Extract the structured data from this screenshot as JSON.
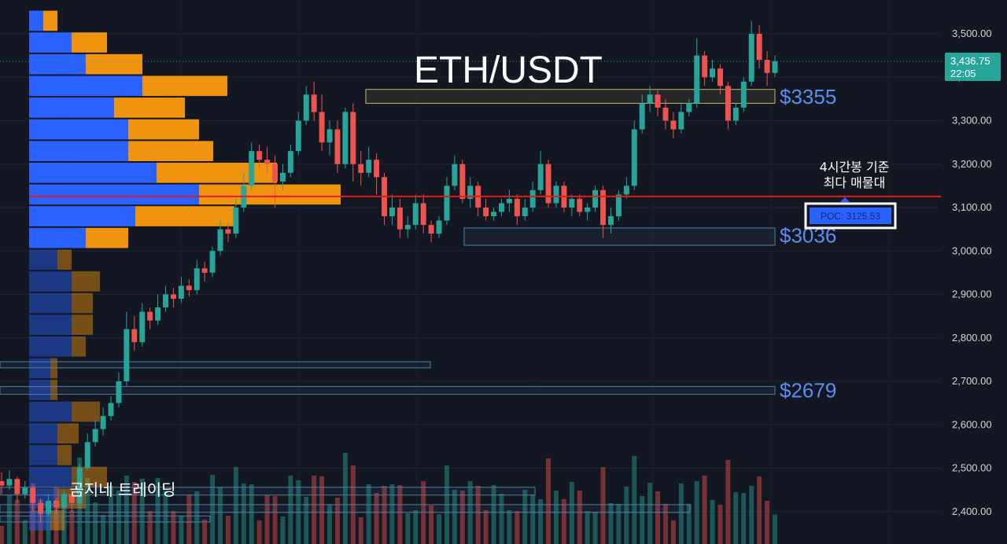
{
  "title": "ETH/USDT",
  "watermark": "곰지네 트레이딩",
  "price_axis": {
    "ticks": [
      "3,500.00",
      "3,400.00",
      "3,300.00",
      "3,200.00",
      "3,100.00",
      "3,000.00",
      "2,900.00",
      "2,800.00",
      "2,700.00",
      "2,600.00",
      "2,500.00",
      "2,400.00"
    ],
    "tick_values": [
      3500,
      3400,
      3300,
      3200,
      3100,
      3000,
      2900,
      2800,
      2700,
      2600,
      2500,
      2400
    ]
  },
  "last_price": {
    "price": "3,436.75",
    "time": "22:05",
    "value": 3436.75,
    "color": "#26a69a"
  },
  "poc": {
    "label": "POC: 3125.53",
    "value": 3125.53,
    "line_color": "#e31a1a",
    "note_line1": "4시간봉 기준",
    "note_line2": "최다 매물대"
  },
  "levels": [
    {
      "label": "$3355",
      "value": 3355
    },
    {
      "label": "$3036",
      "value": 3036
    },
    {
      "label": "$2679",
      "value": 2679
    }
  ],
  "colors": {
    "background": "#131722",
    "up": "#26a69a",
    "down": "#ef5350",
    "buy_volume": "#2962ff",
    "sell_volume": "#f0930e",
    "level_text": "#5b8def"
  },
  "chart_data": {
    "type": "candlestick",
    "title": "ETH/USDT",
    "timeframe": "4시간봉",
    "ylim": [
      2375,
      3560
    ],
    "poc": 3125.53,
    "last_price": 3436.75,
    "candles": [
      [
        2470,
        2460,
        2490,
        2440
      ],
      [
        2460,
        2475,
        2495,
        2450
      ],
      [
        2475,
        2440,
        2480,
        2420
      ],
      [
        2440,
        2455,
        2470,
        2430
      ],
      [
        2455,
        2420,
        2460,
        2400
      ],
      [
        2420,
        2395,
        2430,
        2375
      ],
      [
        2395,
        2425,
        2440,
        2390
      ],
      [
        2425,
        2410,
        2430,
        2395
      ],
      [
        2410,
        2440,
        2450,
        2405
      ],
      [
        2440,
        2420,
        2450,
        2400
      ],
      [
        2420,
        2500,
        2510,
        2415
      ],
      [
        2500,
        2560,
        2580,
        2495
      ],
      [
        2560,
        2590,
        2610,
        2550
      ],
      [
        2590,
        2620,
        2640,
        2575
      ],
      [
        2620,
        2650,
        2665,
        2610
      ],
      [
        2650,
        2700,
        2720,
        2640
      ],
      [
        2700,
        2820,
        2860,
        2690
      ],
      [
        2820,
        2790,
        2850,
        2770
      ],
      [
        2790,
        2860,
        2880,
        2780
      ],
      [
        2860,
        2840,
        2870,
        2820
      ],
      [
        2840,
        2870,
        2900,
        2830
      ],
      [
        2870,
        2900,
        2920,
        2860
      ],
      [
        2900,
        2890,
        2915,
        2870
      ],
      [
        2890,
        2920,
        2940,
        2880
      ],
      [
        2920,
        2910,
        2935,
        2895
      ],
      [
        2910,
        2960,
        2980,
        2900
      ],
      [
        2960,
        2950,
        2975,
        2930
      ],
      [
        2950,
        3000,
        3010,
        2940
      ],
      [
        3000,
        3050,
        3070,
        2990
      ],
      [
        3050,
        3040,
        3065,
        3020
      ],
      [
        3040,
        3100,
        3120,
        3030
      ],
      [
        3100,
        3150,
        3180,
        3090
      ],
      [
        3150,
        3230,
        3250,
        3140
      ],
      [
        3230,
        3210,
        3245,
        3190
      ],
      [
        3210,
        3200,
        3240,
        3180
      ],
      [
        3200,
        3160,
        3220,
        3100
      ],
      [
        3160,
        3180,
        3200,
        3140
      ],
      [
        3180,
        3230,
        3245,
        3170
      ],
      [
        3230,
        3300,
        3320,
        3220
      ],
      [
        3300,
        3360,
        3380,
        3290
      ],
      [
        3360,
        3320,
        3390,
        3300
      ],
      [
        3320,
        3250,
        3360,
        3230
      ],
      [
        3250,
        3280,
        3300,
        3220
      ],
      [
        3280,
        3200,
        3300,
        3180
      ],
      [
        3200,
        3320,
        3330,
        3190
      ],
      [
        3320,
        3200,
        3340,
        3160
      ],
      [
        3200,
        3180,
        3230,
        3150
      ],
      [
        3180,
        3210,
        3240,
        3170
      ],
      [
        3210,
        3170,
        3225,
        3130
      ],
      [
        3170,
        3080,
        3180,
        3060
      ],
      [
        3080,
        3100,
        3130,
        3060
      ],
      [
        3100,
        3050,
        3120,
        3030
      ],
      [
        3050,
        3060,
        3080,
        3030
      ],
      [
        3060,
        3110,
        3130,
        3050
      ],
      [
        3110,
        3060,
        3130,
        3040
      ],
      [
        3060,
        3040,
        3070,
        3020
      ],
      [
        3040,
        3070,
        3080,
        3030
      ],
      [
        3070,
        3150,
        3170,
        3060
      ],
      [
        3150,
        3200,
        3220,
        3140
      ],
      [
        3200,
        3120,
        3210,
        3110
      ],
      [
        3120,
        3150,
        3170,
        3100
      ],
      [
        3150,
        3100,
        3160,
        3080
      ],
      [
        3100,
        3080,
        3120,
        3070
      ],
      [
        3080,
        3090,
        3100,
        3070
      ],
      [
        3090,
        3110,
        3120,
        3080
      ],
      [
        3110,
        3120,
        3140,
        3090
      ],
      [
        3120,
        3080,
        3130,
        3060
      ],
      [
        3080,
        3100,
        3120,
        3070
      ],
      [
        3100,
        3140,
        3160,
        3090
      ],
      [
        3140,
        3200,
        3230,
        3130
      ],
      [
        3200,
        3110,
        3210,
        3100
      ],
      [
        3110,
        3150,
        3160,
        3100
      ],
      [
        3150,
        3100,
        3160,
        3090
      ],
      [
        3100,
        3120,
        3130,
        3080
      ],
      [
        3120,
        3090,
        3130,
        3080
      ],
      [
        3090,
        3100,
        3110,
        3070
      ],
      [
        3100,
        3140,
        3150,
        3090
      ],
      [
        3140,
        3060,
        3150,
        3030
      ],
      [
        3060,
        3080,
        3100,
        3040
      ],
      [
        3080,
        3130,
        3140,
        3070
      ],
      [
        3130,
        3150,
        3170,
        3120
      ],
      [
        3150,
        3280,
        3300,
        3140
      ],
      [
        3280,
        3340,
        3360,
        3270
      ],
      [
        3340,
        3360,
        3380,
        3320
      ],
      [
        3360,
        3330,
        3370,
        3310
      ],
      [
        3330,
        3300,
        3350,
        3280
      ],
      [
        3300,
        3280,
        3320,
        3260
      ],
      [
        3280,
        3320,
        3340,
        3270
      ],
      [
        3320,
        3340,
        3350,
        3310
      ],
      [
        3340,
        3450,
        3490,
        3330
      ],
      [
        3450,
        3400,
        3460,
        3380
      ],
      [
        3400,
        3420,
        3440,
        3390
      ],
      [
        3420,
        3380,
        3430,
        3360
      ],
      [
        3380,
        3300,
        3390,
        3280
      ],
      [
        3300,
        3330,
        3340,
        3290
      ],
      [
        3330,
        3390,
        3400,
        3320
      ],
      [
        3390,
        3500,
        3530,
        3380
      ],
      [
        3500,
        3440,
        3520,
        3420
      ],
      [
        3440,
        3410,
        3460,
        3380
      ],
      [
        3410,
        3437,
        3450,
        3400
      ]
    ],
    "volume_profile": {
      "bins": [
        3530,
        3480,
        3430,
        3380,
        3330,
        3280,
        3230,
        3180,
        3130,
        3080,
        3030,
        2980,
        2930,
        2880,
        2830,
        2780,
        2730,
        2680,
        2630,
        2580,
        2530,
        2480,
        2430,
        2380
      ],
      "buy": [
        10,
        30,
        40,
        80,
        60,
        70,
        70,
        90,
        120,
        75,
        40,
        20,
        30,
        30,
        30,
        30,
        15,
        15,
        30,
        20,
        20,
        30,
        20,
        15
      ],
      "sell": [
        10,
        25,
        40,
        60,
        50,
        50,
        60,
        85,
        100,
        70,
        30,
        10,
        20,
        15,
        15,
        10,
        5,
        5,
        20,
        15,
        10,
        25,
        20,
        10
      ]
    }
  }
}
